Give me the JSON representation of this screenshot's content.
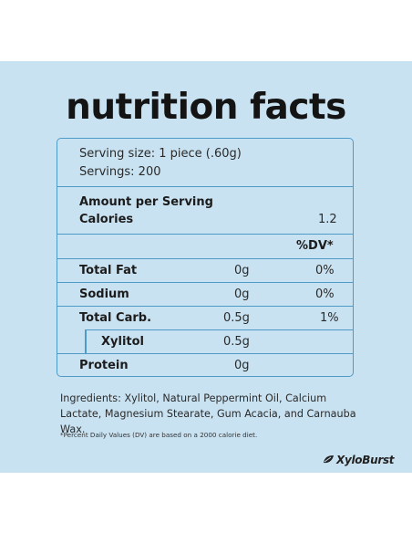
{
  "title": "nutrition facts",
  "serving": {
    "size": "Serving size: 1 piece (.60g)",
    "servings": "Servings: 200"
  },
  "amount": {
    "header": "Amount per Serving",
    "calories_label": "Calories",
    "calories_value": "1.2"
  },
  "dv_header": "%DV*",
  "nutrients": [
    {
      "name": "Total Fat",
      "amount": "0g",
      "dv": "0%"
    },
    {
      "name": "Sodium",
      "amount": "0g",
      "dv": "0%"
    },
    {
      "name": "Total Carb.",
      "amount": "0.5g",
      "dv": "1%"
    },
    {
      "name": "Xylitol",
      "amount": "0.5g",
      "dv": ""
    },
    {
      "name": "Protein",
      "amount": "0g",
      "dv": ""
    }
  ],
  "ingredients": "Ingredients: Xylitol, Natural Peppermint Oil, Calcium Lactate, Magnesium Stearate, Gum Acacia, and Carnauba Wax.",
  "footnote": "*Percent Daily Values (DV) are based on a 2000 calorie diet.",
  "brand": "XyloBurst",
  "brand_icon": "leaf-icon",
  "colors": {
    "panel": "#c9e2f1",
    "border": "#4f9bc7",
    "text": "#1c1c1c"
  }
}
